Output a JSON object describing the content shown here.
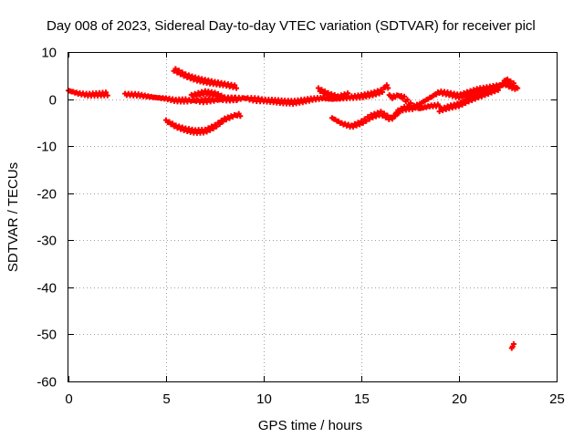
{
  "chart_data": {
    "type": "scatter",
    "title": "Day 008 of 2023, Sidereal Day-to-day VTEC variation (SDTVAR) for receiver picl",
    "xlabel": "GPS time / hours",
    "ylabel": "SDTVAR / TECUs",
    "xlim": [
      0,
      25
    ],
    "ylim": [
      -60,
      10
    ],
    "xticks": [
      "0",
      "5",
      "10",
      "15",
      "20",
      "25"
    ],
    "yticks": [
      "10",
      "0",
      "-10",
      "-20",
      "-30",
      "-40",
      "-50",
      "-60"
    ],
    "grid": true,
    "marker_color": "#ff0000",
    "series": [
      {
        "tracks": [
          [
            [
              0.0,
              1.8
            ],
            [
              0.5,
              1.2
            ],
            [
              1.0,
              0.9
            ],
            [
              1.5,
              1.0
            ],
            [
              2.0,
              1.1
            ]
          ],
          [
            [
              2.9,
              1.0
            ],
            [
              3.5,
              0.9
            ],
            [
              4.0,
              0.6
            ],
            [
              4.5,
              0.3
            ],
            [
              5.0,
              0.1
            ],
            [
              5.5,
              -0.3
            ],
            [
              6.0,
              -0.3
            ],
            [
              7.0,
              -0.4
            ]
          ],
          [
            [
              5.4,
              6.3
            ],
            [
              6.0,
              5.0
            ],
            [
              6.5,
              4.3
            ],
            [
              7.0,
              3.8
            ],
            [
              7.5,
              3.4
            ],
            [
              8.0,
              3.1
            ],
            [
              8.6,
              2.6
            ]
          ],
          [
            [
              5.0,
              -4.6
            ],
            [
              5.5,
              -5.8
            ],
            [
              6.0,
              -6.5
            ],
            [
              6.5,
              -6.9
            ],
            [
              7.0,
              -6.8
            ],
            [
              7.5,
              -5.8
            ],
            [
              8.0,
              -4.3
            ],
            [
              8.5,
              -3.5
            ],
            [
              8.8,
              -3.3
            ]
          ],
          [
            [
              6.3,
              0.7
            ],
            [
              7.0,
              1.4
            ],
            [
              7.5,
              1.1
            ],
            [
              8.0,
              0.2
            ],
            [
              8.6,
              0.0
            ]
          ],
          [
            [
              7.0,
              -0.3
            ],
            [
              8.0,
              -0.1
            ],
            [
              9.0,
              0.2
            ],
            [
              10.0,
              -0.3
            ],
            [
              10.5,
              -0.4
            ],
            [
              11.0,
              -0.6
            ],
            [
              11.5,
              -0.7
            ],
            [
              12.0,
              -0.4
            ],
            [
              12.5,
              0.0
            ],
            [
              13.0,
              0.2
            ],
            [
              13.5,
              0.0
            ],
            [
              14.0,
              0.2
            ],
            [
              14.5,
              0.4
            ],
            [
              15.0,
              0.6
            ],
            [
              15.5,
              1.0
            ],
            [
              16.0,
              1.6
            ]
          ],
          [
            [
              12.8,
              2.1
            ],
            [
              13.3,
              1.0
            ],
            [
              13.8,
              0.3
            ],
            [
              14.3,
              0.9
            ]
          ],
          [
            [
              13.5,
              -4.0
            ],
            [
              14.0,
              -5.2
            ],
            [
              14.5,
              -5.8
            ],
            [
              15.0,
              -5.0
            ],
            [
              15.5,
              -3.7
            ],
            [
              16.0,
              -3.0
            ],
            [
              16.5,
              -4.2
            ],
            [
              16.9,
              -3.0
            ]
          ],
          [
            [
              16.0,
              1.4
            ],
            [
              16.3,
              3.0
            ],
            [
              16.5,
              0.3
            ],
            [
              16.9,
              0.8
            ],
            [
              17.2,
              0.2
            ],
            [
              17.6,
              -1.5
            ],
            [
              18.0,
              -2.0
            ],
            [
              18.5,
              -1.5
            ],
            [
              19.0,
              -1.3
            ]
          ],
          [
            [
              16.8,
              -2.7
            ],
            [
              17.2,
              -2.0
            ],
            [
              17.7,
              -1.8
            ],
            [
              18.0,
              -1.0
            ],
            [
              18.6,
              0.5
            ],
            [
              19.0,
              1.5
            ],
            [
              19.5,
              1.1
            ],
            [
              20.0,
              0.6
            ],
            [
              20.5,
              1.3
            ],
            [
              21.0,
              2.0
            ],
            [
              21.5,
              2.4
            ],
            [
              22.0,
              2.9
            ],
            [
              22.4,
              3.1
            ],
            [
              22.8,
              2.5
            ],
            [
              23.0,
              2.2
            ]
          ],
          [
            [
              19.0,
              -2.4
            ],
            [
              19.5,
              -1.7
            ],
            [
              20.0,
              -1.2
            ],
            [
              20.5,
              -0.2
            ],
            [
              21.0,
              0.6
            ],
            [
              21.5,
              1.3
            ],
            [
              22.0,
              2.0
            ],
            [
              22.4,
              4.2
            ],
            [
              22.8,
              3.0
            ]
          ],
          [
            [
              22.7,
              -52.6
            ],
            [
              22.8,
              -52.4
            ]
          ]
        ]
      }
    ]
  }
}
